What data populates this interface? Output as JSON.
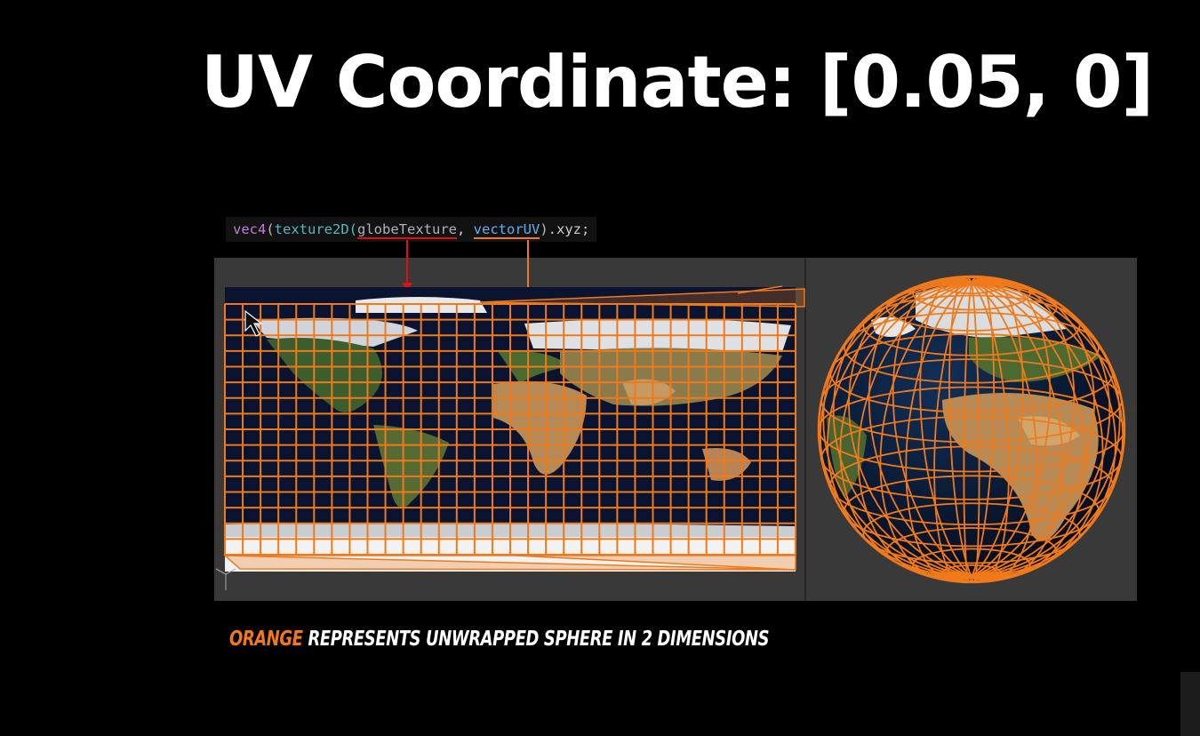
{
  "title": "UV Coordinate: [0.05, 0]",
  "code": {
    "fn": "vec4",
    "open": "(",
    "call": "texture2D(",
    "arg1": "globeTexture",
    "comma": ", ",
    "arg2": "vectorUV",
    "close": ")",
    "suffix": ".xyz;"
  },
  "caption": {
    "accent": "ORANGE",
    "rest": " REPRESENTS UNWRAPPED SPHERE IN 2 DIMENSIONS"
  },
  "colors": {
    "grid": "#f07a1a",
    "arrow_texture": "#d11",
    "arrow_uv": "#f07a1a",
    "panel": "#393939",
    "background": "#000000"
  },
  "icons": [
    "mouse-cursor-icon",
    "axis-gizmo-icon"
  ]
}
